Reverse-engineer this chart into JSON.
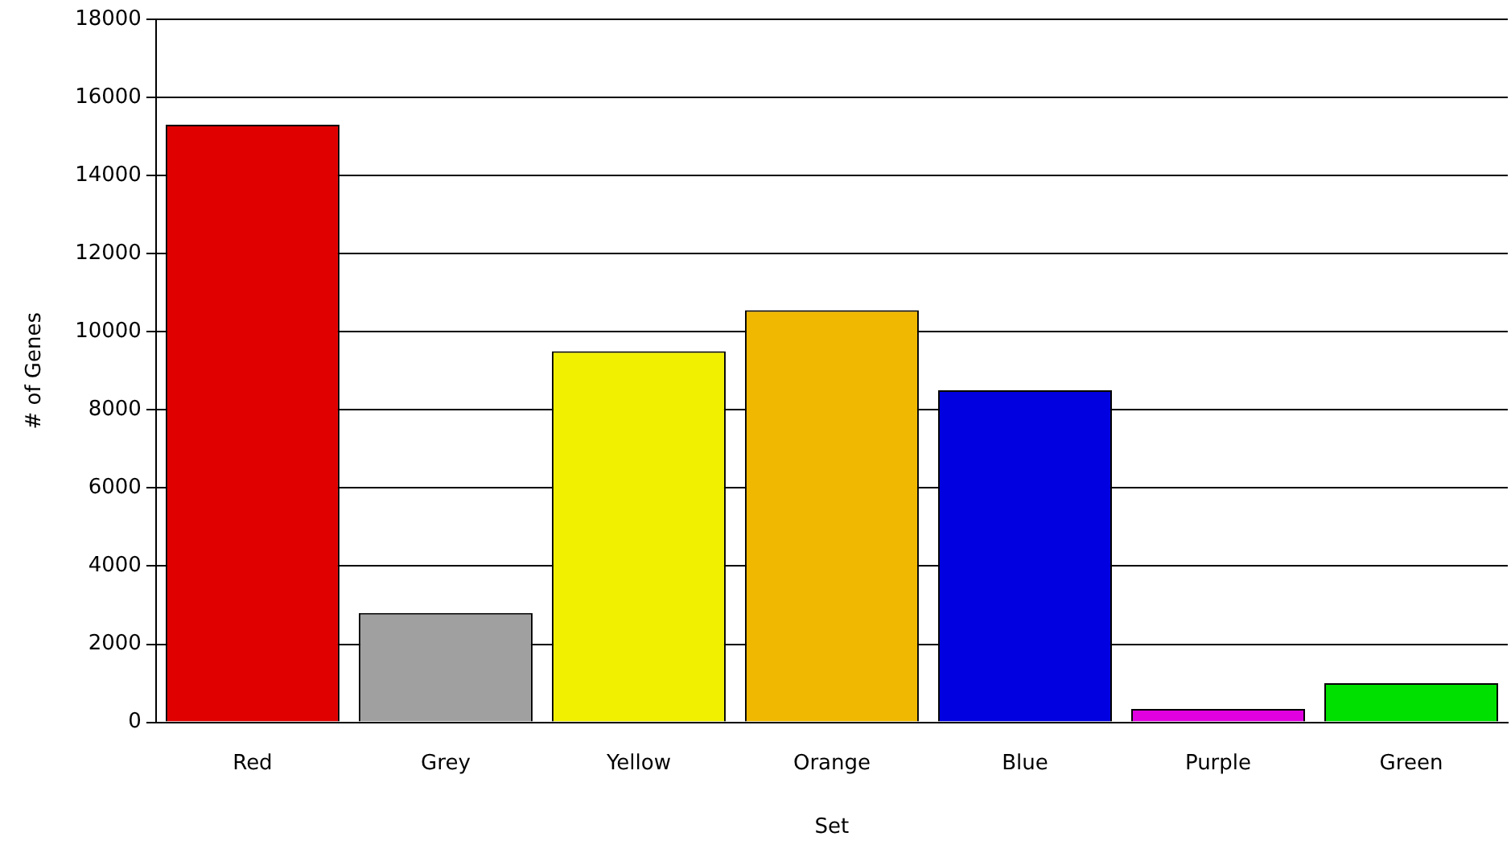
{
  "chart_data": {
    "type": "bar",
    "xlabel": "Set",
    "ylabel": "# of Genes",
    "categories": [
      "Red",
      "Grey",
      "Yellow",
      "Orange",
      "Blue",
      "Purple",
      "Green"
    ],
    "values": [
      15300,
      2800,
      9500,
      10550,
      8500,
      340,
      1000
    ],
    "colors": [
      "#e00000",
      "#a0a0a0",
      "#f0f000",
      "#f0b800",
      "#0000e0",
      "#e000e0",
      "#00e000"
    ],
    "ylim": [
      0,
      18000
    ],
    "yticks": [
      0,
      2000,
      4000,
      6000,
      8000,
      10000,
      12000,
      14000,
      16000,
      18000
    ],
    "grid": "y",
    "legend": false
  }
}
